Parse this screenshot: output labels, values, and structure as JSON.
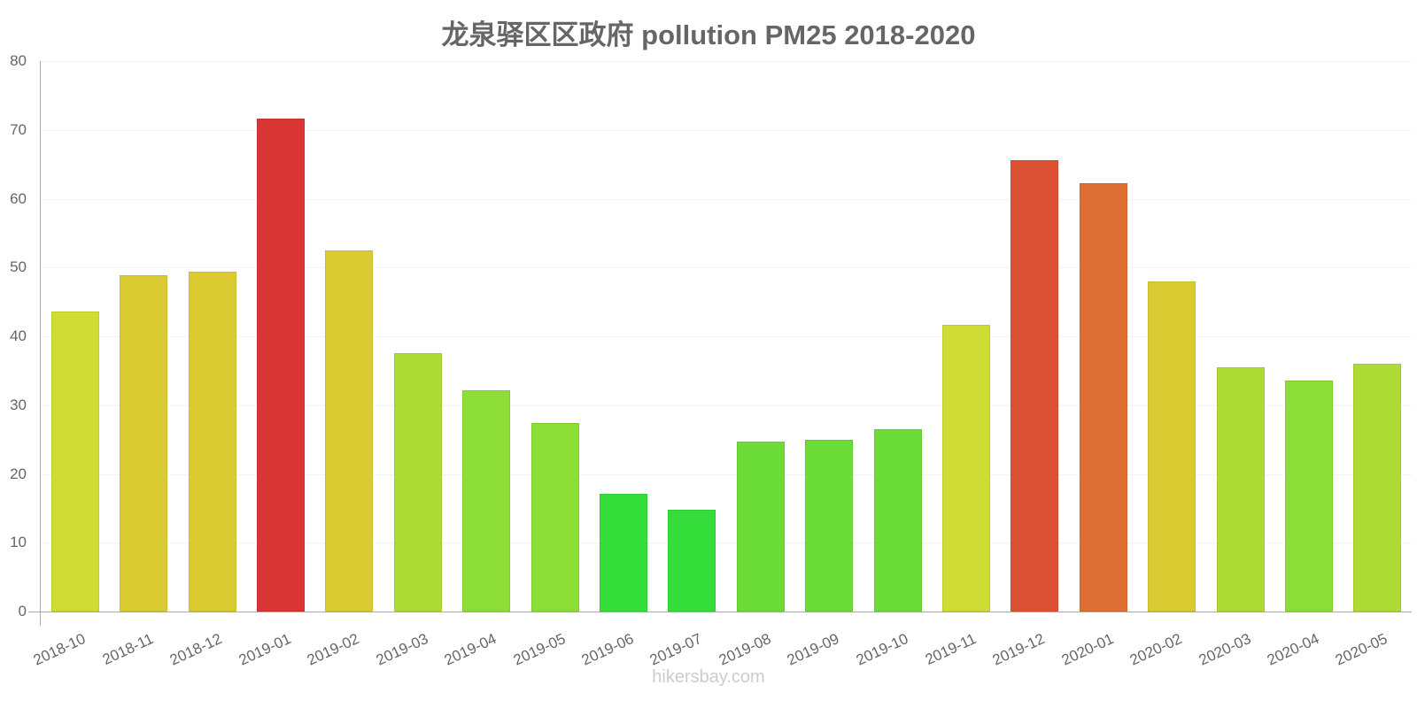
{
  "title": "龙泉驿区区政府 pollution PM25 2018-2020",
  "footer": "hikersbay.com",
  "chart_data": {
    "type": "bar",
    "title": "龙泉驿区区政府 pollution PM25 2018-2020",
    "xlabel": "",
    "ylabel": "",
    "ylim": [
      0,
      80
    ],
    "yticks": [
      0,
      10,
      20,
      30,
      40,
      50,
      60,
      70,
      80
    ],
    "grid": true,
    "legend": null,
    "categories": [
      "2018-10",
      "2018-11",
      "2018-12",
      "2019-01",
      "2019-02",
      "2019-03",
      "2019-04",
      "2019-05",
      "2019-06",
      "2019-07",
      "2019-08",
      "2019-09",
      "2019-10",
      "2019-11",
      "2019-12",
      "2020-01",
      "2020-02",
      "2020-03",
      "2020-04",
      "2020-05"
    ],
    "values": [
      43.6,
      48.9,
      49.4,
      71.6,
      52.5,
      37.6,
      32.2,
      27.4,
      17.1,
      14.8,
      24.7,
      25.0,
      26.5,
      41.7,
      65.6,
      62.3,
      48.0,
      35.5,
      33.6,
      36.0
    ],
    "colors": [
      "#cfdc34",
      "#dbcb33",
      "#dbcb33",
      "#da3535",
      "#dbcb33",
      "#afdc34",
      "#8cdd35",
      "#8cdd35",
      "#35dd3a",
      "#35dd3a",
      "#6bdd36",
      "#6bdd36",
      "#6bdd36",
      "#cfdc34",
      "#dc5134",
      "#dd6f34",
      "#dbcb33",
      "#afdc34",
      "#8cdd35",
      "#afdc34"
    ]
  }
}
